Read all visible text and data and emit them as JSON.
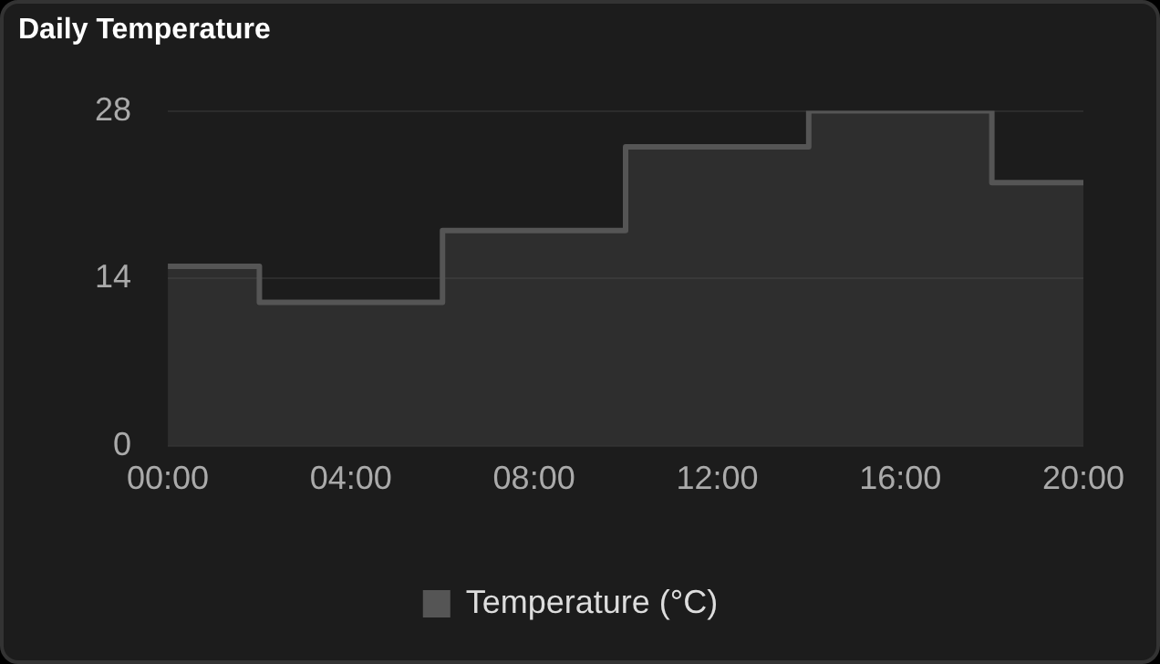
{
  "chart_data": {
    "type": "area",
    "title": "Daily Temperature",
    "x": [
      0,
      2,
      2,
      6,
      6,
      10,
      10,
      14,
      14,
      18,
      18,
      20
    ],
    "series": [
      {
        "name": "Temperature (°C)",
        "color": "#555555",
        "values": [
          15,
          15,
          12,
          12,
          18,
          18,
          25,
          25,
          28,
          28,
          22,
          22
        ]
      }
    ],
    "xlim": [
      0,
      20
    ],
    "xticks": [
      {
        "value": 0,
        "label": "00:00"
      },
      {
        "value": 4,
        "label": "04:00"
      },
      {
        "value": 8,
        "label": "08:00"
      },
      {
        "value": 12,
        "label": "12:00"
      },
      {
        "value": 16,
        "label": "16:00"
      },
      {
        "value": 20,
        "label": "20:00"
      }
    ],
    "ylim": [
      0,
      28
    ],
    "yticks": [
      0,
      14,
      28
    ],
    "grid": "y",
    "legend": "bottom"
  }
}
